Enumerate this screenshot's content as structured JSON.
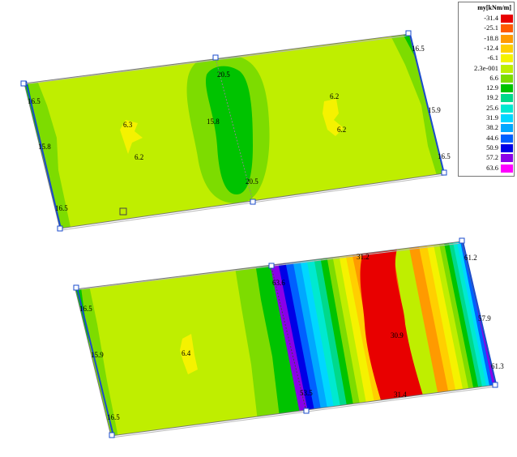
{
  "legend": {
    "title": "my[kNm/m]",
    "entries": [
      {
        "value": "-31.4",
        "color": "#e80000"
      },
      {
        "value": "-25.1",
        "color": "#ff5a00"
      },
      {
        "value": "-18.8",
        "color": "#ff9a00"
      },
      {
        "value": "-12.4",
        "color": "#ffcf00"
      },
      {
        "value": "-6.1",
        "color": "#f5f200"
      },
      {
        "value": "2.3e-001",
        "color": "#bfee00"
      },
      {
        "value": "6.6",
        "color": "#7ddc00"
      },
      {
        "value": "12.9",
        "color": "#00c300"
      },
      {
        "value": "19.2",
        "color": "#00d98b"
      },
      {
        "value": "25.6",
        "color": "#00e9d0"
      },
      {
        "value": "31.9",
        "color": "#00d7ff"
      },
      {
        "value": "38.2",
        "color": "#00a8ff"
      },
      {
        "value": "44.6",
        "color": "#0060ff"
      },
      {
        "value": "50.9",
        "color": "#0000e6"
      },
      {
        "value": "57.2",
        "color": "#8a00e8"
      },
      {
        "value": "63.6",
        "color": "#ff00ff"
      }
    ]
  },
  "top_slab": {
    "labels": [
      "16.5",
      "15.8",
      "16.5",
      "6.3",
      "6.2",
      "20.5",
      "15.8",
      "20.5",
      "6.2",
      "6.2",
      "16.5",
      "15.9",
      "16.5"
    ]
  },
  "bottom_slab": {
    "labels": [
      "16.5",
      "15.9",
      "16.5",
      "6.4",
      "63.6",
      "53.5",
      "31.2",
      "30.9",
      "31.4",
      "61.2",
      "57.9",
      "61.3"
    ]
  }
}
